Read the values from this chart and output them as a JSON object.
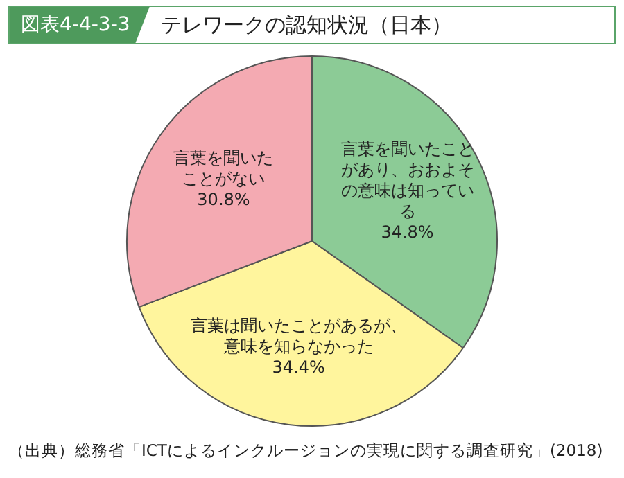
{
  "chart_data": {
    "type": "pie",
    "subtitle": "図表4-4-3-3",
    "title": "テレワークの認知状況（日本）",
    "categories": [
      "言葉を聞いたことがあり、おおよその意味は知っている",
      "言葉は聞いたことがあるが、意味を知らなかった",
      "言葉を聞いたことがない"
    ],
    "values": [
      34.8,
      34.4,
      30.8
    ],
    "value_labels": [
      "34.8%",
      "34.4%",
      "30.8%"
    ],
    "colors": [
      "#8ccb96",
      "#fff59d",
      "#f4aab2"
    ],
    "legend": false,
    "annotations": [
      "（出典）総務省「ICTによるインクルージョンの実現に関する調査研究」(2018)"
    ]
  }
}
